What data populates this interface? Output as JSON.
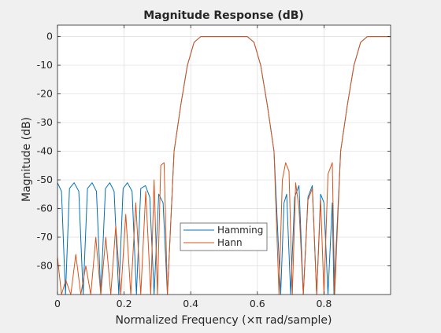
{
  "chart_data": {
    "type": "line",
    "title": "Magnitude Response (dB)",
    "xlabel": "Normalized Frequency  (×π rad/sample)",
    "ylabel": "Magnitude (dB)",
    "xlim": [
      0,
      1
    ],
    "ylim": [
      -90,
      4
    ],
    "xticks": [
      0,
      0.2,
      0.4,
      0.6,
      0.8
    ],
    "xtick_labels": [
      "0",
      "0.2",
      "0.4",
      "0.6",
      "0.8"
    ],
    "yticks": [
      0,
      -10,
      -20,
      -30,
      -40,
      -50,
      -60,
      -70,
      -80
    ],
    "ytick_labels": [
      "0",
      "-10",
      "-20",
      "-30",
      "-40",
      "-50",
      "-60",
      "-70",
      "-80"
    ],
    "grid": true,
    "legend_position": "lower-center",
    "series": [
      {
        "name": "Hamming",
        "color": "#0072BD",
        "x": [
          0,
          0.012,
          0.024,
          0.036,
          0.05,
          0.064,
          0.077,
          0.09,
          0.104,
          0.117,
          0.13,
          0.144,
          0.157,
          0.17,
          0.184,
          0.197,
          0.21,
          0.224,
          0.237,
          0.25,
          0.264,
          0.277,
          0.29,
          0.304,
          0.317,
          0.33,
          0.35,
          0.37,
          0.39,
          0.41,
          0.43,
          0.45,
          0.47,
          0.5,
          0.53,
          0.55,
          0.57,
          0.59,
          0.61,
          0.63,
          0.65,
          0.67,
          0.68,
          0.688,
          0.7,
          0.712,
          0.725,
          0.738,
          0.752,
          0.765,
          0.778,
          0.79,
          0.8,
          0.812,
          0.825,
          0.83,
          0.85,
          0.87,
          0.89,
          0.91,
          0.93,
          0.95,
          0.97,
          0.985,
          1.0
        ],
        "y": [
          -51,
          -54,
          -90,
          -53,
          -51,
          -54,
          -90,
          -53,
          -51,
          -54,
          -90,
          -53,
          -51,
          -54,
          -90,
          -53,
          -51,
          -54,
          -90,
          -53,
          -52,
          -56,
          -90,
          -55,
          -58,
          -90,
          -40,
          -24,
          -10,
          -2,
          0,
          0,
          0,
          0,
          0,
          0,
          0,
          -2,
          -10,
          -24,
          -40,
          -90,
          -58,
          -55,
          -90,
          -56,
          -52,
          -90,
          -56,
          -52,
          -90,
          -55,
          -58,
          -90,
          -58,
          -90,
          -40,
          -24,
          -10,
          -2,
          0,
          0,
          0,
          0,
          0
        ]
      },
      {
        "name": "Hann",
        "color": "#D95319",
        "x": [
          0,
          0.012,
          0.025,
          0.04,
          0.055,
          0.07,
          0.085,
          0.1,
          0.115,
          0.13,
          0.145,
          0.16,
          0.175,
          0.19,
          0.205,
          0.22,
          0.235,
          0.25,
          0.265,
          0.28,
          0.29,
          0.3,
          0.31,
          0.32,
          0.33,
          0.35,
          0.37,
          0.39,
          0.41,
          0.43,
          0.45,
          0.47,
          0.5,
          0.53,
          0.55,
          0.57,
          0.59,
          0.61,
          0.63,
          0.65,
          0.665,
          0.675,
          0.685,
          0.695,
          0.705,
          0.715,
          0.725,
          0.738,
          0.752,
          0.765,
          0.778,
          0.79,
          0.8,
          0.812,
          0.825,
          0.832,
          0.85,
          0.87,
          0.89,
          0.91,
          0.93,
          0.95,
          0.97,
          0.985,
          1.0
        ],
        "y": [
          -77,
          -90,
          -85,
          -90,
          -76,
          -90,
          -80,
          -90,
          -70,
          -90,
          -70,
          -90,
          -66,
          -90,
          -62,
          -90,
          -58,
          -90,
          -54,
          -90,
          -50,
          -90,
          -45,
          -44,
          -90,
          -40,
          -24,
          -10,
          -2,
          0,
          0,
          0,
          0,
          0,
          0,
          0,
          -2,
          -10,
          -24,
          -40,
          -90,
          -50,
          -44,
          -47,
          -90,
          -51,
          -60,
          -90,
          -57,
          -53,
          -90,
          -57,
          -90,
          -48,
          -44,
          -90,
          -40,
          -24,
          -10,
          -2,
          0,
          0,
          0,
          0,
          0
        ]
      }
    ]
  }
}
